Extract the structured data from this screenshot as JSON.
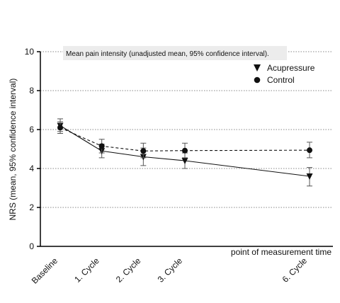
{
  "chart_data": {
    "type": "line",
    "annotation": "Mean pain intensity (unadjusted mean, 95% confidence interval).",
    "ylabel": "NRS (mean, 95% confidence interval)",
    "xlabel": "point of measurement time",
    "ylim": [
      0,
      10
    ],
    "yticks": [
      "0",
      "2",
      "4",
      "6",
      "8",
      "10"
    ],
    "grid": "horizontal dotted",
    "legend_position": "top-right",
    "categories": [
      "Baseline",
      "1. Cycle",
      "2. Cycle",
      "3. Cycle",
      "6. Cycle"
    ],
    "x_cycle": [
      0,
      1,
      2,
      3,
      6
    ],
    "series": [
      {
        "name": "Acupressure",
        "marker": "triangle-down",
        "line": "solid",
        "values": [
          6.2,
          4.9,
          4.6,
          4.4,
          3.6
        ],
        "ci_low": [
          5.9,
          4.55,
          4.15,
          4.0,
          3.1
        ],
        "ci_high": [
          6.55,
          5.25,
          5.05,
          4.8,
          4.05
        ]
      },
      {
        "name": "Control",
        "marker": "circle",
        "line": "dashed",
        "values": [
          6.1,
          5.15,
          4.9,
          4.92,
          4.94
        ],
        "ci_low": [
          5.8,
          4.8,
          4.55,
          4.55,
          4.55
        ],
        "ci_high": [
          6.4,
          5.5,
          5.3,
          5.3,
          5.35
        ]
      }
    ]
  }
}
